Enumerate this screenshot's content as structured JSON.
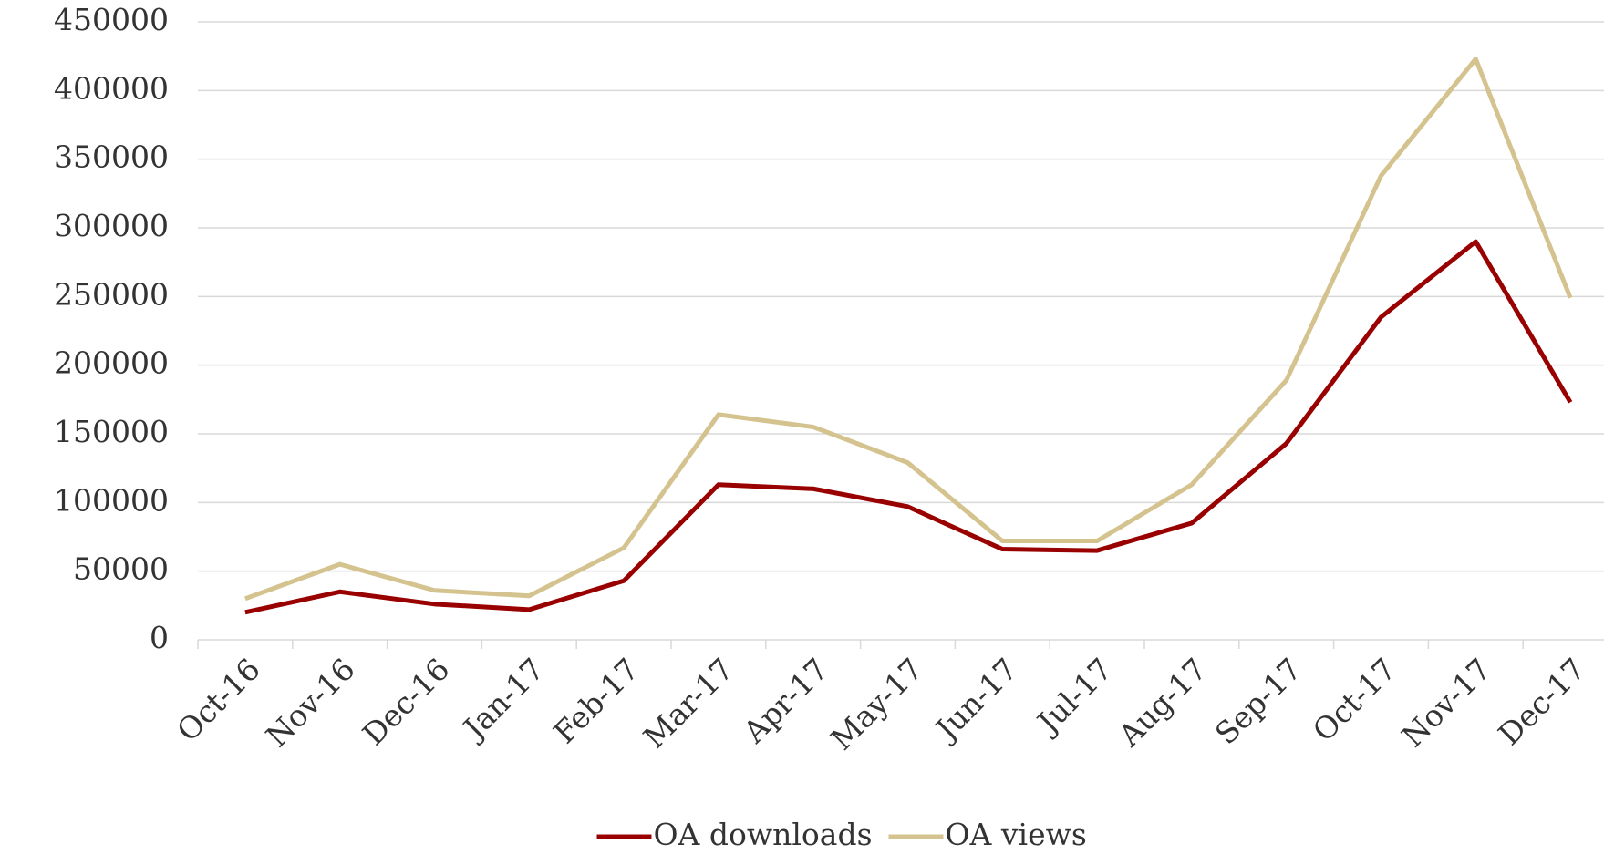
{
  "chart_data": {
    "type": "line",
    "categories": [
      "Oct-16",
      "Nov-16",
      "Dec-16",
      "Jan-17",
      "Feb-17",
      "Mar-17",
      "Apr-17",
      "May-17",
      "Jun-17",
      "Jul-17",
      "Aug-17",
      "Sep-17",
      "Oct-17",
      "Nov-17",
      "Dec-17"
    ],
    "series": [
      {
        "name": "OA downloads",
        "color": "#990000",
        "values": [
          20000,
          35000,
          26000,
          22000,
          43000,
          113000,
          110000,
          97000,
          66000,
          65000,
          85000,
          143000,
          235000,
          290000,
          173000
        ]
      },
      {
        "name": "OA views",
        "color": "#d4c38e",
        "values": [
          30000,
          55000,
          36000,
          32000,
          67000,
          164000,
          155000,
          129000,
          72000,
          72000,
          113000,
          189000,
          338000,
          423000,
          249000
        ]
      }
    ],
    "ylim": [
      0,
      450000
    ],
    "yticks": [
      0,
      50000,
      100000,
      150000,
      200000,
      250000,
      300000,
      350000,
      400000,
      450000
    ],
    "grid": true,
    "legend": "bottom"
  }
}
